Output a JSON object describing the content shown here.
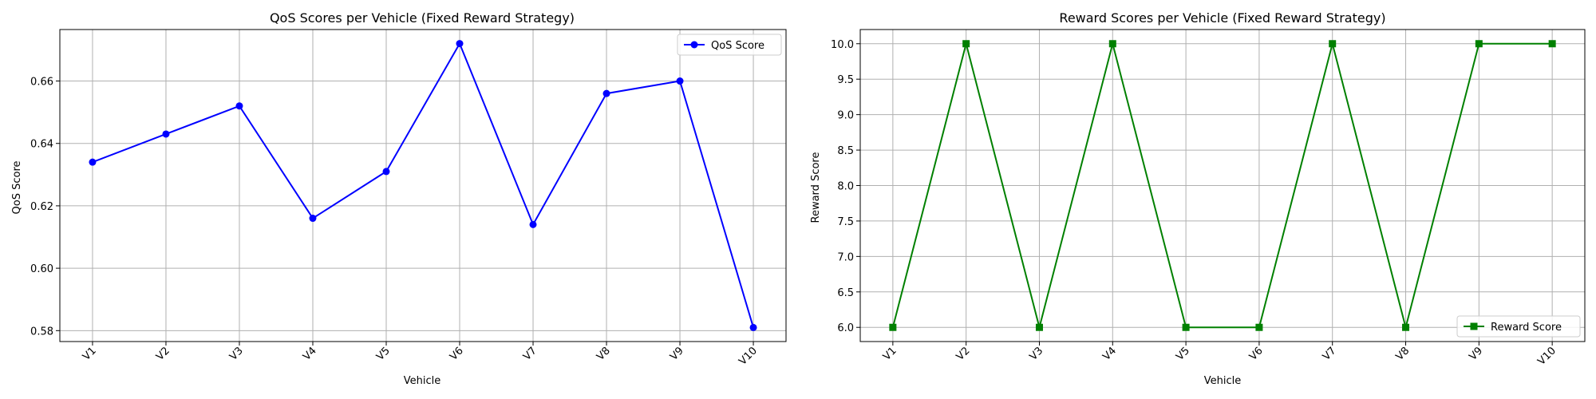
{
  "chart_data": [
    {
      "type": "line",
      "title": "QoS Scores per Vehicle (Fixed Reward Strategy)",
      "xlabel": "Vehicle",
      "ylabel": "QoS Score",
      "categories": [
        "V1",
        "V2",
        "V3",
        "V4",
        "V5",
        "V6",
        "V7",
        "V8",
        "V9",
        "V10"
      ],
      "series": [
        {
          "name": "QoS Score",
          "color": "#0000ff",
          "marker": "circle",
          "values": [
            0.634,
            0.643,
            0.652,
            0.616,
            0.631,
            0.672,
            0.614,
            0.656,
            0.66,
            0.581
          ]
        }
      ],
      "ylim": [
        0.5765,
        0.6765
      ],
      "yticks": [
        0.58,
        0.6,
        0.62,
        0.64,
        0.66
      ],
      "ytick_labels": [
        "0.58",
        "0.60",
        "0.62",
        "0.64",
        "0.66"
      ],
      "grid": true,
      "legend": "upper right"
    },
    {
      "type": "line",
      "title": "Reward Scores per Vehicle (Fixed Reward Strategy)",
      "xlabel": "Vehicle",
      "ylabel": "Reward Score",
      "categories": [
        "V1",
        "V2",
        "V3",
        "V4",
        "V5",
        "V6",
        "V7",
        "V8",
        "V9",
        "V10"
      ],
      "series": [
        {
          "name": "Reward Score",
          "color": "#008000",
          "marker": "square",
          "values": [
            6,
            10,
            6,
            10,
            6,
            6,
            10,
            6,
            10,
            10
          ]
        }
      ],
      "ylim": [
        5.8,
        10.2
      ],
      "yticks": [
        6.0,
        6.5,
        7.0,
        7.5,
        8.0,
        8.5,
        9.0,
        9.5,
        10.0
      ],
      "ytick_labels": [
        "6.0",
        "6.5",
        "7.0",
        "7.5",
        "8.0",
        "8.5",
        "9.0",
        "9.5",
        "10.0"
      ],
      "grid": true,
      "legend": "lower right"
    }
  ]
}
